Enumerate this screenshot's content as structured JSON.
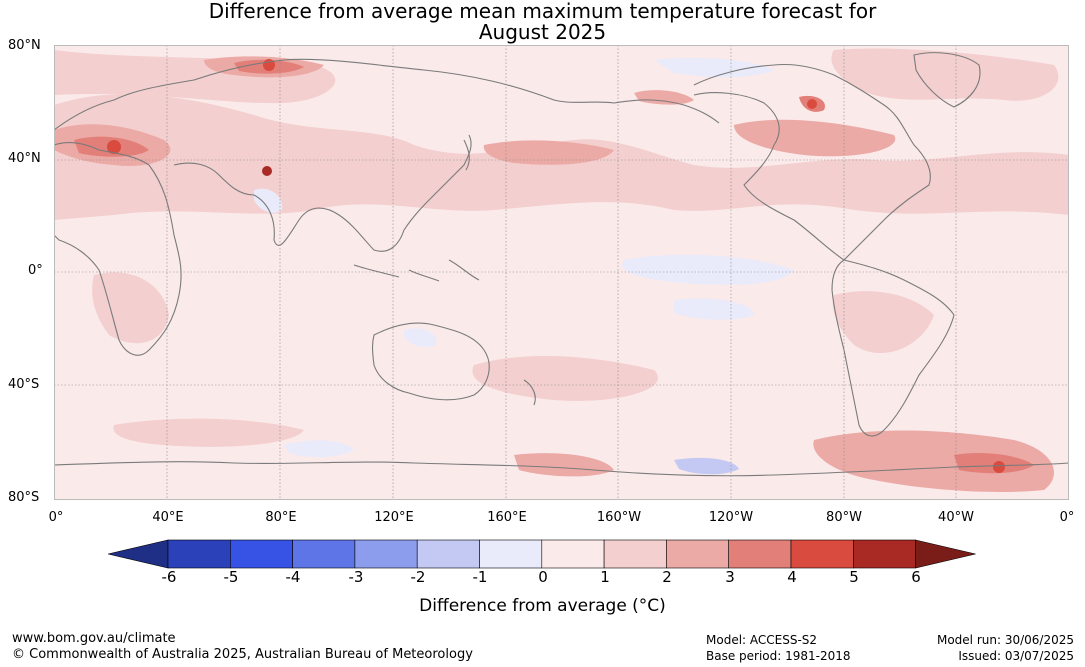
{
  "title": {
    "line1": "Difference from average mean maximum temperature forecast for",
    "line2": "August 2025"
  },
  "map": {
    "lat_labels": [
      "80°N",
      "40°N",
      "0°",
      "40°S",
      "80°S"
    ],
    "lon_labels": [
      "0°",
      "40°E",
      "80°E",
      "120°E",
      "160°E",
      "160°W",
      "120°W",
      "80°W",
      "40°W",
      "0°"
    ],
    "coastline_color": "#7a7a7a",
    "grid": "dotted"
  },
  "legend": {
    "ticks": [
      "-6",
      "-5",
      "-4",
      "-3",
      "-2",
      "-1",
      "0",
      "1",
      "2",
      "3",
      "4",
      "5",
      "6"
    ],
    "label": "Difference from average (°C)",
    "colors": [
      "#1f2f86",
      "#2a41b9",
      "#3653e6",
      "#5d75e6",
      "#8c9ded",
      "#c3c9f2",
      "#e9ebfb",
      "#fbeaea",
      "#f3cfcf",
      "#ebaaa6",
      "#e37f79",
      "#d94a3f",
      "#a92a24",
      "#7a1d18"
    ]
  },
  "footer": {
    "website": "www.bom.gov.au/climate",
    "copyright": "© Commonwealth of Australia 2025, Australian Bureau of Meteorology",
    "model": "Model: ACCESS-S2",
    "base_period": "Base period: 1981-2018",
    "model_run": "Model run: 30/06/2025",
    "issued": "Issued: 03/07/2025"
  }
}
